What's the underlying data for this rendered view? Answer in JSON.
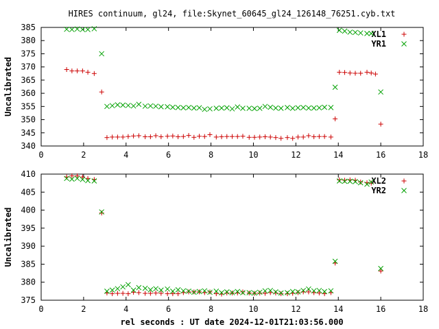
{
  "chart_data": {
    "title": "HIRES continuum, gl24, file:Skynet_60645_gl24_126148_76251.cyb.txt",
    "xlabel": "rel seconds : UT date 2024-12-01T21:03:56.000",
    "colors": {
      "red": "#cc0000",
      "green": "#00a000"
    },
    "panels": [
      {
        "type": "scatter",
        "ylabel": "Uncalibrated",
        "xlim": [
          0,
          18
        ],
        "ylim": [
          340,
          385
        ],
        "xticks": [
          "0",
          "2",
          "4",
          "6",
          "8",
          "10",
          "12",
          "14",
          "16",
          "18"
        ],
        "yticks": [
          "340",
          "345",
          "350",
          "355",
          "360",
          "365",
          "370",
          "375",
          "380",
          "385"
        ],
        "series": [
          {
            "name": "XL1",
            "marker": "plus",
            "color": "#cc0000",
            "points": [
              [
                1.2,
                369
              ],
              [
                1.45,
                368.5
              ],
              [
                1.7,
                368.5
              ],
              [
                1.95,
                368.5
              ],
              [
                2.2,
                368
              ],
              [
                2.5,
                367.5
              ],
              [
                2.85,
                360.5
              ],
              [
                3.1,
                343.2
              ],
              [
                3.35,
                343.4
              ],
              [
                3.6,
                343.4
              ],
              [
                3.85,
                343.4
              ],
              [
                4.1,
                343.6
              ],
              [
                4.35,
                343.8
              ],
              [
                4.6,
                343.9
              ],
              [
                4.9,
                343.5
              ],
              [
                5.15,
                343.5
              ],
              [
                5.4,
                343.9
              ],
              [
                5.65,
                343.5
              ],
              [
                5.95,
                343.7
              ],
              [
                6.2,
                343.8
              ],
              [
                6.45,
                343.5
              ],
              [
                6.7,
                343.6
              ],
              [
                6.95,
                344
              ],
              [
                7.2,
                343.3
              ],
              [
                7.45,
                343.7
              ],
              [
                7.7,
                343.6
              ],
              [
                7.95,
                344.3
              ],
              [
                8.25,
                343.4
              ],
              [
                8.5,
                343.5
              ],
              [
                8.75,
                343.6
              ],
              [
                9.0,
                343.6
              ],
              [
                9.25,
                343.6
              ],
              [
                9.5,
                343.7
              ],
              [
                9.8,
                343.3
              ],
              [
                10.05,
                343.3
              ],
              [
                10.3,
                343.4
              ],
              [
                10.55,
                343.5
              ],
              [
                10.8,
                343.4
              ],
              [
                11.05,
                343.2
              ],
              [
                11.3,
                342.9
              ],
              [
                11.6,
                343.2
              ],
              [
                11.85,
                342.9
              ],
              [
                12.1,
                343.4
              ],
              [
                12.35,
                343.4
              ],
              [
                12.6,
                343.9
              ],
              [
                12.85,
                343.5
              ],
              [
                13.1,
                343.6
              ],
              [
                13.35,
                343.6
              ],
              [
                13.65,
                343.4
              ],
              [
                13.85,
                350.3
              ],
              [
                14.05,
                368
              ],
              [
                14.3,
                367.9
              ],
              [
                14.55,
                367.7
              ],
              [
                14.8,
                367.6
              ],
              [
                15.05,
                367.6
              ],
              [
                15.35,
                368
              ],
              [
                15.55,
                367.7
              ],
              [
                15.75,
                367.3
              ],
              [
                16.0,
                348.3
              ]
            ]
          },
          {
            "name": "YR1",
            "marker": "cross",
            "color": "#00a000",
            "points": [
              [
                1.2,
                384.3
              ],
              [
                1.45,
                384.2
              ],
              [
                1.7,
                384.4
              ],
              [
                1.95,
                384.2
              ],
              [
                2.2,
                384.2
              ],
              [
                2.5,
                384.5
              ],
              [
                2.85,
                375
              ],
              [
                3.1,
                355
              ],
              [
                3.35,
                355.3
              ],
              [
                3.6,
                355.6
              ],
              [
                3.85,
                355.5
              ],
              [
                4.1,
                355.4
              ],
              [
                4.35,
                355.2
              ],
              [
                4.6,
                355.8
              ],
              [
                4.9,
                355.1
              ],
              [
                5.15,
                355.2
              ],
              [
                5.4,
                355.1
              ],
              [
                5.65,
                354.9
              ],
              [
                5.95,
                354.9
              ],
              [
                6.2,
                354.7
              ],
              [
                6.45,
                354.6
              ],
              [
                6.7,
                354.5
              ],
              [
                6.95,
                354.6
              ],
              [
                7.2,
                354.4
              ],
              [
                7.45,
                354.5
              ],
              [
                7.7,
                353.9
              ],
              [
                7.95,
                354.1
              ],
              [
                8.25,
                354.3
              ],
              [
                8.5,
                354.4
              ],
              [
                8.75,
                354.5
              ],
              [
                9.0,
                354.1
              ],
              [
                9.25,
                354.8
              ],
              [
                9.5,
                354.3
              ],
              [
                9.8,
                354.3
              ],
              [
                10.05,
                354.2
              ],
              [
                10.3,
                354.3
              ],
              [
                10.55,
                355
              ],
              [
                10.8,
                354.7
              ],
              [
                11.05,
                354.4
              ],
              [
                11.3,
                354.3
              ],
              [
                11.6,
                354.6
              ],
              [
                11.85,
                354.3
              ],
              [
                12.1,
                354.5
              ],
              [
                12.35,
                354.6
              ],
              [
                12.6,
                354.4
              ],
              [
                12.85,
                354.4
              ],
              [
                13.1,
                354.5
              ],
              [
                13.35,
                354.7
              ],
              [
                13.65,
                354.6
              ],
              [
                13.85,
                362.3
              ],
              [
                14.05,
                383.9
              ],
              [
                14.3,
                383.6
              ],
              [
                14.55,
                383.2
              ],
              [
                14.8,
                383.1
              ],
              [
                15.05,
                382.9
              ],
              [
                15.35,
                382.7
              ],
              [
                15.55,
                382.7
              ],
              [
                16.0,
                360.5
              ]
            ]
          }
        ]
      },
      {
        "type": "scatter",
        "ylabel": "Uncalibrated",
        "xlim": [
          0,
          18
        ],
        "ylim": [
          375,
          410
        ],
        "xticks": [
          "0",
          "2",
          "4",
          "6",
          "8",
          "10",
          "12",
          "14",
          "16",
          "18"
        ],
        "yticks": [
          "375",
          "380",
          "385",
          "390",
          "395",
          "400",
          "405",
          "410"
        ],
        "series": [
          {
            "name": "XL2",
            "marker": "plus",
            "color": "#cc0000",
            "points": [
              [
                1.2,
                409.2
              ],
              [
                1.45,
                409.5
              ],
              [
                1.7,
                409.5
              ],
              [
                1.95,
                409.2
              ],
              [
                2.2,
                408.8
              ],
              [
                2.5,
                408.5
              ],
              [
                2.85,
                399.2
              ],
              [
                3.1,
                377
              ],
              [
                3.35,
                376.8
              ],
              [
                3.6,
                376.9
              ],
              [
                3.85,
                376.9
              ],
              [
                4.1,
                376.8
              ],
              [
                4.35,
                377.2
              ],
              [
                4.6,
                377.1
              ],
              [
                4.9,
                376.9
              ],
              [
                5.15,
                376.9
              ],
              [
                5.4,
                377
              ],
              [
                5.65,
                376.9
              ],
              [
                5.95,
                376.8
              ],
              [
                6.2,
                376.8
              ],
              [
                6.45,
                376.8
              ],
              [
                6.7,
                377.1
              ],
              [
                6.95,
                377.3
              ],
              [
                7.2,
                377.3
              ],
              [
                7.45,
                377.3
              ],
              [
                7.7,
                377.1
              ],
              [
                7.95,
                377.3
              ],
              [
                8.25,
                376.8
              ],
              [
                8.5,
                376.7
              ],
              [
                8.75,
                377
              ],
              [
                9.0,
                377
              ],
              [
                9.25,
                377
              ],
              [
                9.5,
                377.3
              ],
              [
                9.8,
                377
              ],
              [
                10.05,
                376.9
              ],
              [
                10.3,
                377
              ],
              [
                10.55,
                376.9
              ],
              [
                10.8,
                377.1
              ],
              [
                11.05,
                377
              ],
              [
                11.3,
                376.8
              ],
              [
                11.6,
                376.8
              ],
              [
                11.85,
                376.9
              ],
              [
                12.1,
                377.1
              ],
              [
                12.35,
                377.3
              ],
              [
                12.6,
                377.3
              ],
              [
                12.85,
                377.1
              ],
              [
                13.1,
                377
              ],
              [
                13.35,
                376.8
              ],
              [
                13.65,
                377.1
              ],
              [
                13.85,
                385.3
              ],
              [
                14.05,
                408.4
              ],
              [
                14.3,
                408.3
              ],
              [
                14.55,
                408.4
              ],
              [
                14.8,
                408.3
              ],
              [
                15.05,
                407.8
              ],
              [
                15.35,
                407.6
              ],
              [
                15.55,
                407.5
              ],
              [
                16.0,
                383.1
              ]
            ]
          },
          {
            "name": "YR2",
            "marker": "cross",
            "color": "#00a000",
            "points": [
              [
                1.2,
                408.8
              ],
              [
                1.45,
                408.6
              ],
              [
                1.7,
                408.8
              ],
              [
                1.95,
                408.5
              ],
              [
                2.2,
                408.2
              ],
              [
                2.5,
                408.1
              ],
              [
                2.85,
                399.5
              ],
              [
                3.1,
                377.5
              ],
              [
                3.35,
                377.8
              ],
              [
                3.6,
                378.2
              ],
              [
                3.85,
                378.7
              ],
              [
                4.1,
                379.3
              ],
              [
                4.35,
                377.8
              ],
              [
                4.6,
                378.5
              ],
              [
                4.9,
                378.3
              ],
              [
                5.15,
                377.9
              ],
              [
                5.4,
                378.2
              ],
              [
                5.65,
                377.8
              ],
              [
                5.95,
                378.1
              ],
              [
                6.2,
                377.5
              ],
              [
                6.45,
                377.9
              ],
              [
                6.7,
                377.6
              ],
              [
                6.95,
                377.5
              ],
              [
                7.2,
                377.2
              ],
              [
                7.45,
                377.4
              ],
              [
                7.7,
                377.6
              ],
              [
                7.95,
                377.2
              ],
              [
                8.25,
                377.5
              ],
              [
                8.5,
                377.1
              ],
              [
                8.75,
                377.3
              ],
              [
                9.0,
                377.1
              ],
              [
                9.25,
                377.4
              ],
              [
                9.5,
                377.1
              ],
              [
                9.8,
                377.1
              ],
              [
                10.05,
                377
              ],
              [
                10.3,
                377.2
              ],
              [
                10.55,
                377.6
              ],
              [
                10.8,
                377.7
              ],
              [
                11.05,
                377.3
              ],
              [
                11.3,
                377
              ],
              [
                11.6,
                377.1
              ],
              [
                11.85,
                377.4
              ],
              [
                12.1,
                377.3
              ],
              [
                12.35,
                377.7
              ],
              [
                12.6,
                378.1
              ],
              [
                12.85,
                377.6
              ],
              [
                13.1,
                377.7
              ],
              [
                13.35,
                377.4
              ],
              [
                13.65,
                377.6
              ],
              [
                13.85,
                385.8
              ],
              [
                14.05,
                408.1
              ],
              [
                14.3,
                408
              ],
              [
                14.55,
                408
              ],
              [
                14.8,
                407.9
              ],
              [
                15.05,
                407.6
              ],
              [
                15.35,
                407.2
              ],
              [
                15.55,
                407.8
              ],
              [
                16.0,
                383.8
              ]
            ]
          }
        ]
      }
    ]
  }
}
